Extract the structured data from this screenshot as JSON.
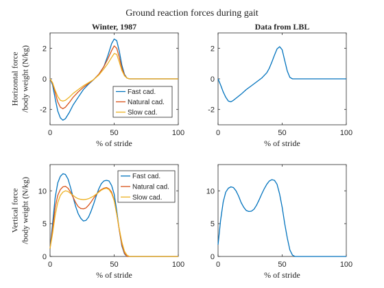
{
  "figure": {
    "title": "Ground reaction forces during gait"
  },
  "colors": {
    "fast": "#0072BD",
    "natural": "#D95319",
    "slow": "#EDB120"
  },
  "chart_data": [
    {
      "id": "top-left",
      "type": "line",
      "title": "Winter, 1987",
      "xlabel": "% of stride",
      "ylabel": [
        "Horizontal force",
        "/body weight (N/kg)"
      ],
      "xlim": [
        0,
        100
      ],
      "ylim": [
        -3,
        3
      ],
      "xticks": [
        0,
        50,
        100
      ],
      "yticks": [
        -2,
        0,
        2
      ],
      "legend": "bottom-right",
      "series": [
        {
          "name": "Fast cad.",
          "color_key": "fast",
          "x": [
            0,
            2,
            4,
            6,
            8,
            10,
            12,
            15,
            18,
            22,
            26,
            30,
            34,
            38,
            42,
            45,
            48,
            50,
            52,
            54,
            56,
            58,
            60,
            62,
            66,
            70,
            100
          ],
          "y": [
            0,
            -0.4,
            -1.3,
            -2.1,
            -2.55,
            -2.7,
            -2.6,
            -2.2,
            -1.7,
            -1.2,
            -0.7,
            -0.35,
            -0.05,
            0.3,
            0.8,
            1.5,
            2.3,
            2.6,
            2.5,
            1.8,
            0.9,
            0.3,
            0.05,
            0,
            0,
            0,
            0
          ]
        },
        {
          "name": "Natural cad.",
          "color_key": "natural",
          "x": [
            0,
            2,
            4,
            6,
            8,
            10,
            12,
            15,
            18,
            22,
            26,
            30,
            34,
            38,
            42,
            45,
            48,
            50,
            52,
            54,
            56,
            58,
            60,
            62,
            66,
            70,
            100
          ],
          "y": [
            0,
            -0.3,
            -0.9,
            -1.5,
            -1.85,
            -1.95,
            -1.85,
            -1.55,
            -1.2,
            -0.85,
            -0.55,
            -0.3,
            -0.05,
            0.3,
            0.8,
            1.3,
            1.85,
            2.15,
            2.0,
            1.4,
            0.7,
            0.25,
            0.05,
            0,
            0,
            0,
            0
          ]
        },
        {
          "name": "Slow cad.",
          "color_key": "slow",
          "x": [
            0,
            2,
            4,
            6,
            8,
            10,
            12,
            15,
            18,
            22,
            26,
            30,
            34,
            38,
            42,
            45,
            48,
            50,
            52,
            54,
            56,
            58,
            60,
            62,
            66,
            70,
            100
          ],
          "y": [
            0,
            -0.25,
            -0.75,
            -1.15,
            -1.4,
            -1.45,
            -1.4,
            -1.2,
            -0.95,
            -0.7,
            -0.45,
            -0.25,
            -0.05,
            0.25,
            0.65,
            1.0,
            1.4,
            1.65,
            1.6,
            1.1,
            0.55,
            0.2,
            0.05,
            0,
            0,
            0,
            0
          ]
        }
      ]
    },
    {
      "id": "top-right",
      "type": "line",
      "title": "Data from LBL",
      "xlabel": "% of stride",
      "xlim": [
        0,
        100
      ],
      "ylim": [
        -3,
        3
      ],
      "xticks": [
        0,
        50,
        100
      ],
      "yticks": [
        -2,
        0,
        2
      ],
      "series": [
        {
          "color_key": "fast",
          "x": [
            0,
            2,
            4,
            6,
            8,
            10,
            12,
            15,
            18,
            22,
            26,
            30,
            34,
            38,
            40,
            42,
            44,
            46,
            48,
            50,
            52,
            54,
            56,
            58,
            60,
            100
          ],
          "y": [
            0,
            -0.4,
            -0.85,
            -1.2,
            -1.45,
            -1.5,
            -1.4,
            -1.2,
            -1.0,
            -0.7,
            -0.45,
            -0.2,
            0.05,
            0.4,
            0.7,
            1.1,
            1.55,
            1.95,
            2.1,
            1.9,
            1.2,
            0.5,
            0.1,
            0,
            0,
            0
          ]
        }
      ]
    },
    {
      "id": "bottom-left",
      "type": "line",
      "xlabel": "% of stride",
      "ylabel": [
        "Vertical force",
        "/body weight (N/kg)"
      ],
      "xlim": [
        0,
        100
      ],
      "ylim": [
        0,
        14
      ],
      "xticks": [
        0,
        50,
        100
      ],
      "yticks": [
        0,
        5,
        10
      ],
      "legend": "top-right",
      "series": [
        {
          "name": "Fast cad.",
          "color_key": "fast",
          "x": [
            0,
            2,
            4,
            6,
            8,
            10,
            12,
            14,
            16,
            18,
            20,
            22,
            24,
            26,
            28,
            30,
            32,
            34,
            36,
            38,
            40,
            42,
            44,
            46,
            48,
            50,
            52,
            54,
            56,
            58,
            60,
            62,
            100
          ],
          "y": [
            1.2,
            5,
            9,
            11.2,
            12.2,
            12.6,
            12.5,
            11.8,
            10.5,
            9,
            7.6,
            6.5,
            5.8,
            5.4,
            5.5,
            6,
            6.9,
            8,
            9.2,
            10.3,
            11.1,
            11.5,
            11.6,
            11.5,
            10.8,
            9.5,
            7,
            4,
            1.6,
            0.4,
            0,
            0,
            0
          ]
        },
        {
          "name": "Natural cad.",
          "color_key": "natural",
          "x": [
            0,
            2,
            4,
            6,
            8,
            10,
            12,
            14,
            16,
            18,
            20,
            22,
            24,
            26,
            28,
            30,
            32,
            34,
            36,
            38,
            40,
            42,
            44,
            46,
            48,
            50,
            52,
            54,
            56,
            58,
            60,
            62,
            100
          ],
          "y": [
            1.2,
            4.2,
            7.5,
            9.3,
            10.2,
            10.6,
            10.7,
            10.4,
            9.8,
            9,
            8.2,
            7.6,
            7.3,
            7.25,
            7.4,
            7.8,
            8.3,
            8.9,
            9.4,
            9.9,
            10.2,
            10.4,
            10.5,
            10.3,
            9.8,
            8.6,
            6.5,
            4,
            1.8,
            0.5,
            0,
            0,
            0
          ]
        },
        {
          "name": "Slow cad.",
          "color_key": "slow",
          "x": [
            0,
            2,
            4,
            6,
            8,
            10,
            12,
            14,
            16,
            18,
            20,
            22,
            24,
            26,
            28,
            30,
            32,
            34,
            36,
            38,
            40,
            42,
            44,
            46,
            48,
            50,
            52,
            54,
            56,
            58,
            60,
            62,
            100
          ],
          "y": [
            1.2,
            3.5,
            6.3,
            8.2,
            9.3,
            9.8,
            10,
            9.9,
            9.6,
            9.3,
            9,
            8.8,
            8.7,
            8.65,
            8.7,
            8.8,
            9,
            9.2,
            9.5,
            9.8,
            10.1,
            10.3,
            10.4,
            10.2,
            9.6,
            8.5,
            6.5,
            4.2,
            2.2,
            0.8,
            0.2,
            0,
            0
          ]
        }
      ]
    },
    {
      "id": "bottom-right",
      "type": "line",
      "xlabel": "% of stride",
      "xlim": [
        0,
        100
      ],
      "ylim": [
        0,
        14
      ],
      "xticks": [
        0,
        50,
        100
      ],
      "yticks": [
        0,
        5,
        10
      ],
      "series": [
        {
          "color_key": "fast",
          "x": [
            0,
            2,
            4,
            6,
            8,
            10,
            12,
            14,
            16,
            18,
            20,
            22,
            24,
            26,
            28,
            30,
            32,
            34,
            36,
            38,
            40,
            42,
            44,
            46,
            48,
            50,
            52,
            54,
            56,
            58,
            60,
            100
          ],
          "y": [
            1.8,
            5.5,
            8.3,
            9.8,
            10.4,
            10.6,
            10.5,
            10,
            9.2,
            8.2,
            7.5,
            7,
            6.85,
            6.9,
            7.2,
            7.8,
            8.6,
            9.5,
            10.3,
            11,
            11.5,
            11.7,
            11.6,
            11,
            9.5,
            7.5,
            5,
            2.8,
            1,
            0.2,
            0,
            0
          ]
        }
      ]
    }
  ]
}
